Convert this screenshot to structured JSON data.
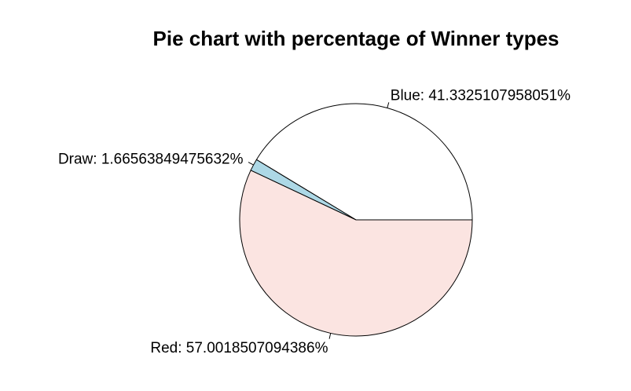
{
  "chart_data": {
    "type": "pie",
    "title": "Pie chart with percentage of Winner types",
    "direction": "counterclockwise",
    "start_angle_deg": 0,
    "border_color": "#000000",
    "slices": [
      {
        "category": "Blue",
        "value": 41.3325107958051,
        "label": "Blue: 41.3325107958051%",
        "color": "#ffffff"
      },
      {
        "category": "Draw",
        "value": 1.66563849475632,
        "label": "Draw: 1.66563849475632%",
        "color": "#add8e6"
      },
      {
        "category": "Red",
        "value": 57.0018507094386,
        "label": "Red: 57.0018507094386%",
        "color": "#fbe4e1"
      }
    ]
  }
}
